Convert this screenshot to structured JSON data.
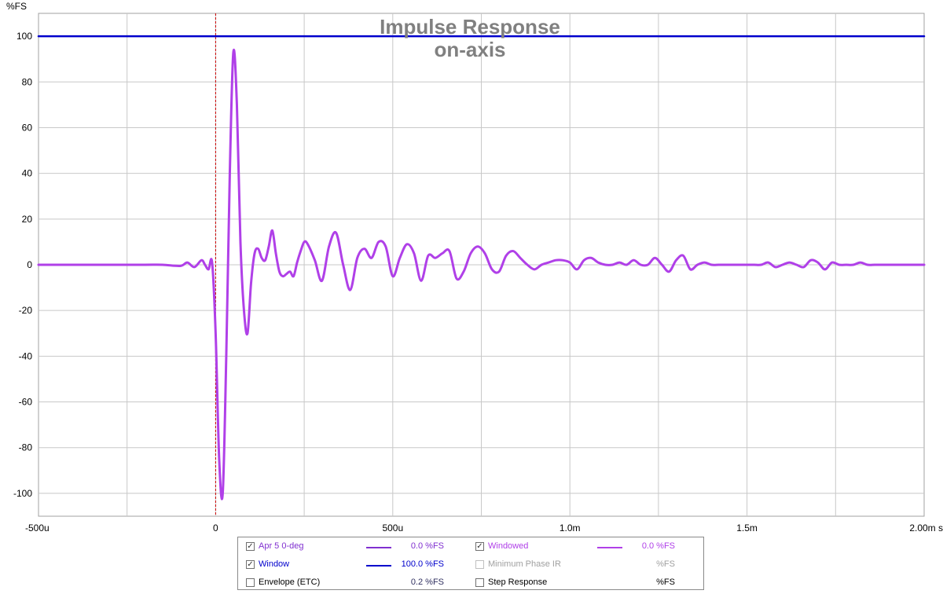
{
  "chart_data": {
    "type": "line",
    "title": "Impulse Response",
    "subtitle": "on-axis",
    "ylabel": "%FS",
    "xlabel": "",
    "x_unit": "s",
    "xlim": [
      -0.0005,
      0.002
    ],
    "ylim": [
      -110,
      110
    ],
    "grid": true,
    "x_ticks": [
      {
        "v": -0.0005,
        "label": "-500u"
      },
      {
        "v": 0,
        "label": "0"
      },
      {
        "v": 0.0005,
        "label": "500u"
      },
      {
        "v": 0.001,
        "label": "1.0m"
      },
      {
        "v": 0.0015,
        "label": "1.5m"
      },
      {
        "v": 0.002,
        "label": "2.00m s"
      }
    ],
    "y_ticks": [
      100,
      80,
      60,
      40,
      20,
      0,
      -20,
      -40,
      -60,
      -80,
      -100
    ],
    "marker_x": 0,
    "marker_color": "#cc0000",
    "series": [
      {
        "name": "Window",
        "color": "#0000cc",
        "x": [
          -0.0005,
          0.002
        ],
        "y": [
          100,
          100
        ]
      },
      {
        "name": "Windowed",
        "color": "#b040e8",
        "x": [
          -0.0005,
          -0.0004,
          -0.0003,
          -0.0002,
          -0.00015,
          -0.0001,
          -8e-05,
          -6e-05,
          -4e-05,
          -3e-05,
          -2e-05,
          -1e-05,
          0,
          1e-05,
          2e-05,
          3e-05,
          4e-05,
          5e-05,
          6e-05,
          7e-05,
          8e-05,
          9e-05,
          0.0001,
          0.00011,
          0.00012,
          0.00013,
          0.00014,
          0.00015,
          0.00016,
          0.00017,
          0.00018,
          0.00019,
          0.0002,
          0.00021,
          0.00022,
          0.00023,
          0.00024,
          0.00025,
          0.00026,
          0.00028,
          0.0003,
          0.00032,
          0.00034,
          0.00036,
          0.00038,
          0.0004,
          0.00042,
          0.00044,
          0.00046,
          0.00048,
          0.0005,
          0.00052,
          0.00054,
          0.00056,
          0.00058,
          0.0006,
          0.00062,
          0.00064,
          0.00066,
          0.00068,
          0.0007,
          0.00072,
          0.00074,
          0.00076,
          0.00078,
          0.0008,
          0.00082,
          0.00084,
          0.00086,
          0.00088,
          0.0009,
          0.00092,
          0.00094,
          0.00096,
          0.00098,
          0.001,
          0.00102,
          0.00104,
          0.00106,
          0.00108,
          0.0011,
          0.00112,
          0.00114,
          0.00116,
          0.00118,
          0.0012,
          0.00122,
          0.00124,
          0.00126,
          0.00128,
          0.0013,
          0.00132,
          0.00134,
          0.00136,
          0.00138,
          0.0014,
          0.00142,
          0.00144,
          0.00146,
          0.00148,
          0.0015,
          0.00152,
          0.00154,
          0.00156,
          0.00158,
          0.0016,
          0.00162,
          0.00164,
          0.00166,
          0.00168,
          0.0017,
          0.00172,
          0.00174,
          0.00176,
          0.00178,
          0.0018,
          0.00182,
          0.00184,
          0.00186,
          0.00188,
          0.0019,
          0.00192,
          0.00194,
          0.00196,
          0.00198,
          0.002
        ],
        "y": [
          0,
          0,
          0,
          0,
          0,
          -0.5,
          1,
          -1,
          2,
          0,
          -2,
          1,
          -30,
          -85,
          -100,
          -40,
          40,
          93,
          70,
          10,
          -20,
          -30,
          -8,
          5,
          7,
          3,
          2,
          8,
          15,
          5,
          -3,
          -5,
          -4,
          -3,
          -5,
          1,
          6,
          10,
          9,
          2,
          -7,
          8,
          14,
          0,
          -11,
          3,
          7,
          3,
          10,
          8,
          -5,
          3,
          9,
          5,
          -7,
          4,
          3,
          5,
          6,
          -6,
          -3,
          5,
          8,
          5,
          -2,
          -3,
          4,
          6,
          3,
          0,
          -2,
          0,
          1,
          2,
          2,
          1,
          -2,
          2,
          3,
          1,
          0,
          0,
          1,
          0,
          2,
          0,
          0,
          3,
          0,
          -3,
          2,
          4,
          -2,
          0,
          1,
          0,
          0,
          0,
          0,
          0,
          0,
          0,
          0,
          1,
          -1,
          0,
          1,
          0,
          -1,
          2,
          1,
          -2,
          1,
          0,
          0,
          0,
          1,
          0,
          0,
          0,
          0,
          0,
          0,
          0,
          0,
          0
        ]
      }
    ]
  },
  "legend": {
    "items": [
      {
        "label": "Apr 5 0-deg",
        "value": "0.0 %FS",
        "checked": true,
        "color": "#8030d0",
        "enabled": true
      },
      {
        "label": "Windowed",
        "value": "0.0 %FS",
        "checked": true,
        "color": "#b040e8",
        "enabled": true
      },
      {
        "label": "Window",
        "value": "100.0 %FS",
        "checked": true,
        "color": "#0000cc",
        "enabled": true
      },
      {
        "label": "Minimum Phase IR",
        "value": "%FS",
        "checked": false,
        "color": "#a0a0a0",
        "enabled": false
      },
      {
        "label": "Envelope (ETC)",
        "value": "0.2 %FS",
        "checked": false,
        "color": "#303060",
        "enabled": true
      },
      {
        "label": "Step Response",
        "value": "%FS",
        "checked": false,
        "color": "#000000",
        "enabled": true
      }
    ]
  }
}
